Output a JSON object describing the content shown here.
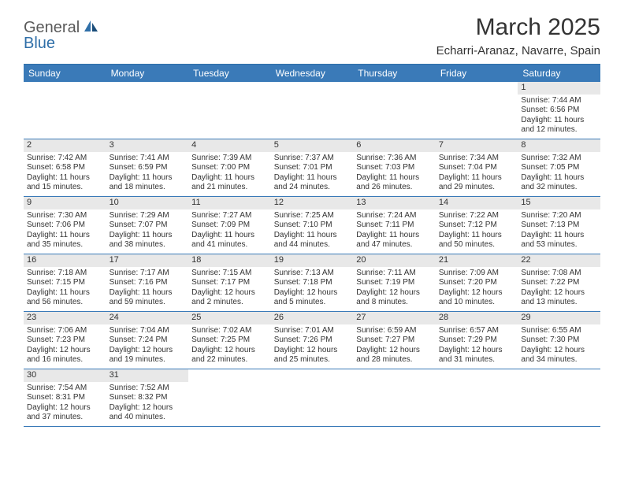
{
  "logo": {
    "general": "General",
    "blue": "Blue"
  },
  "title": "March 2025",
  "location": "Echarri-Aranaz, Navarre, Spain",
  "colors": {
    "header_bg": "#3a7ab8",
    "header_text": "#ffffff",
    "daynum_bg": "#e8e8e8",
    "border": "#3a7ab8",
    "logo_gray": "#5a5a5a",
    "logo_blue": "#2f6fa8"
  },
  "day_headers": [
    "Sunday",
    "Monday",
    "Tuesday",
    "Wednesday",
    "Thursday",
    "Friday",
    "Saturday"
  ],
  "weeks": [
    [
      null,
      null,
      null,
      null,
      null,
      null,
      {
        "n": "1",
        "sunrise": "Sunrise: 7:44 AM",
        "sunset": "Sunset: 6:56 PM",
        "daylight": "Daylight: 11 hours and 12 minutes."
      }
    ],
    [
      {
        "n": "2",
        "sunrise": "Sunrise: 7:42 AM",
        "sunset": "Sunset: 6:58 PM",
        "daylight": "Daylight: 11 hours and 15 minutes."
      },
      {
        "n": "3",
        "sunrise": "Sunrise: 7:41 AM",
        "sunset": "Sunset: 6:59 PM",
        "daylight": "Daylight: 11 hours and 18 minutes."
      },
      {
        "n": "4",
        "sunrise": "Sunrise: 7:39 AM",
        "sunset": "Sunset: 7:00 PM",
        "daylight": "Daylight: 11 hours and 21 minutes."
      },
      {
        "n": "5",
        "sunrise": "Sunrise: 7:37 AM",
        "sunset": "Sunset: 7:01 PM",
        "daylight": "Daylight: 11 hours and 24 minutes."
      },
      {
        "n": "6",
        "sunrise": "Sunrise: 7:36 AM",
        "sunset": "Sunset: 7:03 PM",
        "daylight": "Daylight: 11 hours and 26 minutes."
      },
      {
        "n": "7",
        "sunrise": "Sunrise: 7:34 AM",
        "sunset": "Sunset: 7:04 PM",
        "daylight": "Daylight: 11 hours and 29 minutes."
      },
      {
        "n": "8",
        "sunrise": "Sunrise: 7:32 AM",
        "sunset": "Sunset: 7:05 PM",
        "daylight": "Daylight: 11 hours and 32 minutes."
      }
    ],
    [
      {
        "n": "9",
        "sunrise": "Sunrise: 7:30 AM",
        "sunset": "Sunset: 7:06 PM",
        "daylight": "Daylight: 11 hours and 35 minutes."
      },
      {
        "n": "10",
        "sunrise": "Sunrise: 7:29 AM",
        "sunset": "Sunset: 7:07 PM",
        "daylight": "Daylight: 11 hours and 38 minutes."
      },
      {
        "n": "11",
        "sunrise": "Sunrise: 7:27 AM",
        "sunset": "Sunset: 7:09 PM",
        "daylight": "Daylight: 11 hours and 41 minutes."
      },
      {
        "n": "12",
        "sunrise": "Sunrise: 7:25 AM",
        "sunset": "Sunset: 7:10 PM",
        "daylight": "Daylight: 11 hours and 44 minutes."
      },
      {
        "n": "13",
        "sunrise": "Sunrise: 7:24 AM",
        "sunset": "Sunset: 7:11 PM",
        "daylight": "Daylight: 11 hours and 47 minutes."
      },
      {
        "n": "14",
        "sunrise": "Sunrise: 7:22 AM",
        "sunset": "Sunset: 7:12 PM",
        "daylight": "Daylight: 11 hours and 50 minutes."
      },
      {
        "n": "15",
        "sunrise": "Sunrise: 7:20 AM",
        "sunset": "Sunset: 7:13 PM",
        "daylight": "Daylight: 11 hours and 53 minutes."
      }
    ],
    [
      {
        "n": "16",
        "sunrise": "Sunrise: 7:18 AM",
        "sunset": "Sunset: 7:15 PM",
        "daylight": "Daylight: 11 hours and 56 minutes."
      },
      {
        "n": "17",
        "sunrise": "Sunrise: 7:17 AM",
        "sunset": "Sunset: 7:16 PM",
        "daylight": "Daylight: 11 hours and 59 minutes."
      },
      {
        "n": "18",
        "sunrise": "Sunrise: 7:15 AM",
        "sunset": "Sunset: 7:17 PM",
        "daylight": "Daylight: 12 hours and 2 minutes."
      },
      {
        "n": "19",
        "sunrise": "Sunrise: 7:13 AM",
        "sunset": "Sunset: 7:18 PM",
        "daylight": "Daylight: 12 hours and 5 minutes."
      },
      {
        "n": "20",
        "sunrise": "Sunrise: 7:11 AM",
        "sunset": "Sunset: 7:19 PM",
        "daylight": "Daylight: 12 hours and 8 minutes."
      },
      {
        "n": "21",
        "sunrise": "Sunrise: 7:09 AM",
        "sunset": "Sunset: 7:20 PM",
        "daylight": "Daylight: 12 hours and 10 minutes."
      },
      {
        "n": "22",
        "sunrise": "Sunrise: 7:08 AM",
        "sunset": "Sunset: 7:22 PM",
        "daylight": "Daylight: 12 hours and 13 minutes."
      }
    ],
    [
      {
        "n": "23",
        "sunrise": "Sunrise: 7:06 AM",
        "sunset": "Sunset: 7:23 PM",
        "daylight": "Daylight: 12 hours and 16 minutes."
      },
      {
        "n": "24",
        "sunrise": "Sunrise: 7:04 AM",
        "sunset": "Sunset: 7:24 PM",
        "daylight": "Daylight: 12 hours and 19 minutes."
      },
      {
        "n": "25",
        "sunrise": "Sunrise: 7:02 AM",
        "sunset": "Sunset: 7:25 PM",
        "daylight": "Daylight: 12 hours and 22 minutes."
      },
      {
        "n": "26",
        "sunrise": "Sunrise: 7:01 AM",
        "sunset": "Sunset: 7:26 PM",
        "daylight": "Daylight: 12 hours and 25 minutes."
      },
      {
        "n": "27",
        "sunrise": "Sunrise: 6:59 AM",
        "sunset": "Sunset: 7:27 PM",
        "daylight": "Daylight: 12 hours and 28 minutes."
      },
      {
        "n": "28",
        "sunrise": "Sunrise: 6:57 AM",
        "sunset": "Sunset: 7:29 PM",
        "daylight": "Daylight: 12 hours and 31 minutes."
      },
      {
        "n": "29",
        "sunrise": "Sunrise: 6:55 AM",
        "sunset": "Sunset: 7:30 PM",
        "daylight": "Daylight: 12 hours and 34 minutes."
      }
    ],
    [
      {
        "n": "30",
        "sunrise": "Sunrise: 7:54 AM",
        "sunset": "Sunset: 8:31 PM",
        "daylight": "Daylight: 12 hours and 37 minutes."
      },
      {
        "n": "31",
        "sunrise": "Sunrise: 7:52 AM",
        "sunset": "Sunset: 8:32 PM",
        "daylight": "Daylight: 12 hours and 40 minutes."
      },
      null,
      null,
      null,
      null,
      null
    ]
  ]
}
